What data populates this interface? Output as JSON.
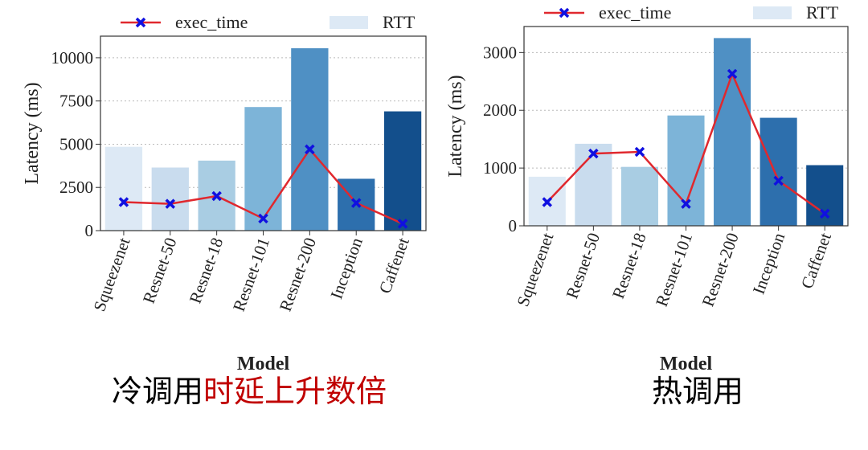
{
  "chart_data": [
    {
      "type": "bar-line",
      "categories": [
        "Squeezenet",
        "Resnet-50",
        "Resnet-18",
        "Resnet-101",
        "Resnet-200",
        "Inception",
        "Caffenet"
      ],
      "xlabel": "Model",
      "ylabel": "Latency (ms)",
      "ylim": [
        0,
        11250
      ],
      "yticks": [
        0,
        2500,
        5000,
        7500,
        10000
      ],
      "grid": true,
      "series": [
        {
          "name": "exec_time",
          "kind": "line",
          "color": "#e0282e",
          "marker_color": "#1010e0",
          "values": [
            1650,
            1550,
            2000,
            700,
            4700,
            1600,
            400
          ]
        },
        {
          "name": "RTT",
          "kind": "bar",
          "color": "#dde9f5",
          "colors": [
            "#dde9f5",
            "#c9dcee",
            "#a9cde3",
            "#7db4d8",
            "#4f90c4",
            "#2d6fad",
            "#134f8c"
          ],
          "values": [
            4850,
            3650,
            4050,
            7150,
            10550,
            3000,
            6900
          ]
        }
      ],
      "caption": [
        {
          "text": "冷调用",
          "color": "#000000"
        },
        {
          "text": "时延上升数倍",
          "color": "#c00000"
        }
      ]
    },
    {
      "type": "bar-line",
      "categories": [
        "Squeezenet",
        "Resnet-50",
        "Resnet-18",
        "Resnet-101",
        "Resnet-200",
        "Inception",
        "Caffenet"
      ],
      "xlabel": "Model",
      "ylabel": "Latency (ms)",
      "ylim": [
        0,
        3450
      ],
      "yticks": [
        0,
        1000,
        2000,
        3000
      ],
      "grid": true,
      "series": [
        {
          "name": "exec_time",
          "kind": "line",
          "color": "#e0282e",
          "marker_color": "#1010e0",
          "values": [
            410,
            1250,
            1280,
            380,
            2630,
            780,
            210
          ]
        },
        {
          "name": "RTT",
          "kind": "bar",
          "color": "#dde9f5",
          "colors": [
            "#dde9f5",
            "#c9dcee",
            "#a9cde3",
            "#7db4d8",
            "#4f90c4",
            "#2d6fad",
            "#134f8c"
          ],
          "values": [
            850,
            1420,
            1020,
            1910,
            3250,
            1870,
            1050
          ]
        }
      ],
      "caption": [
        {
          "text": "热调用",
          "color": "#000000"
        }
      ]
    }
  ]
}
